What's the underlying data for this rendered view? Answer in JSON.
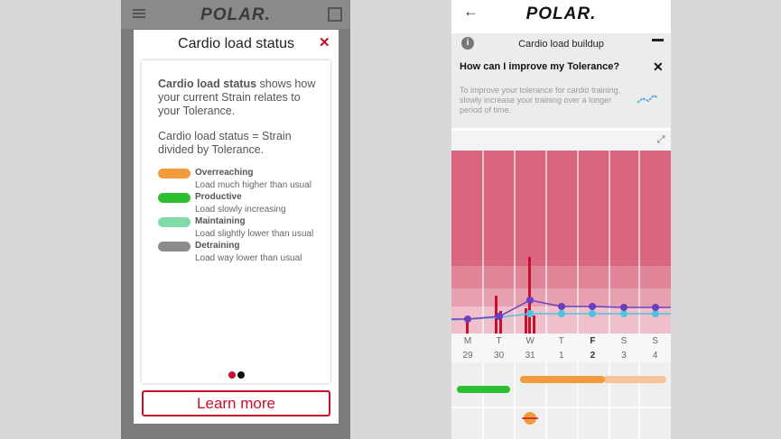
{
  "left_screen": {
    "logo": "POLAR.",
    "dialog": {
      "title": "Cardio load status",
      "close": "✕",
      "intro_bold": "Cardio load status",
      "intro_rest": " shows how your current Strain relates to your Tolerance.",
      "formula": "Cardio load status = Strain divided by Tolerance.",
      "legend": [
        {
          "label": "Overreaching",
          "description": "Load much higher than usual",
          "color": "#f39a3c"
        },
        {
          "label": "Productive",
          "description": "Load slowly increasing",
          "color": "#2cbf2f"
        },
        {
          "label": "Maintaining",
          "description": "Load slightly lower than usual",
          "color": "#7fdca6"
        },
        {
          "label": "Detraining",
          "description": "Load way lower than usual",
          "color": "#8c8c8c"
        }
      ],
      "button": "Learn more"
    }
  },
  "right_screen": {
    "logo": "POLAR.",
    "header": "Cardio load buildup",
    "tip": {
      "title": "How can I improve my Tolerance?",
      "close": "✕",
      "text": "To improve your tolerance for cardio training, slowly increase your training over a longer period of time."
    },
    "days": [
      {
        "letter": "M",
        "date": "29"
      },
      {
        "letter": "T",
        "date": "30"
      },
      {
        "letter": "W",
        "date": "31"
      },
      {
        "letter": "T",
        "date": "1"
      },
      {
        "letter": "F",
        "date": "2",
        "bold": true
      },
      {
        "letter": "S",
        "date": "3"
      },
      {
        "letter": "S",
        "date": "4"
      }
    ]
  }
}
